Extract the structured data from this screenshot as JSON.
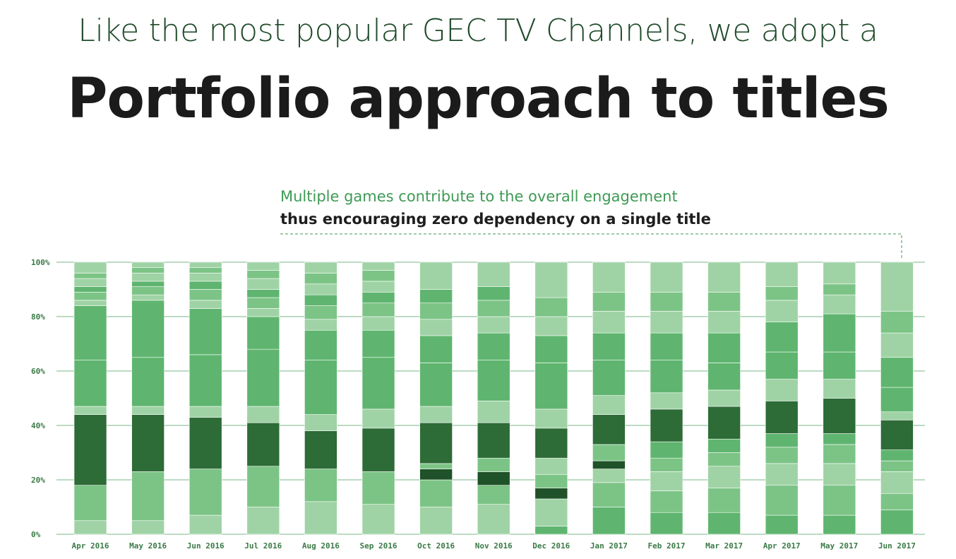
{
  "header": {
    "subtitle": "Like the most popular GEC TV Channels, we adopt a",
    "title": "Portfolio approach to titles"
  },
  "annotation": {
    "line1": "Multiple games contribute to the overall engagement",
    "line2": "thus encouraging zero dependency on a single title"
  },
  "colors": {
    "light": "#9fd3a5",
    "mid": "#5fb56f",
    "midlight": "#7cc486",
    "dark": "#2d6b37",
    "darker": "#1f5228",
    "grid": "#3f9a55"
  },
  "chart_data": {
    "type": "bar",
    "stacked": true,
    "normalized": true,
    "ylim": [
      0,
      100
    ],
    "yticks": [
      "0%",
      "20%",
      "40%",
      "60%",
      "80%",
      "100%"
    ],
    "categories": [
      "Apr 2016",
      "May 2016",
      "Jun 2016",
      "Jul 2016",
      "Aug 2016",
      "Sep 2016",
      "Oct 2016",
      "Nov 2016",
      "Dec 2016",
      "Jan 2017",
      "Feb 2017",
      "Mar 2017",
      "Apr 2017",
      "May 2017",
      "Jun 2017"
    ],
    "grid": true,
    "segments": [
      [
        {
          "v": 5,
          "c": "light"
        },
        {
          "v": 13,
          "c": "midlight"
        },
        {
          "v": 26,
          "c": "dark"
        },
        {
          "v": 3,
          "c": "light"
        },
        {
          "v": 17,
          "c": "mid"
        },
        {
          "v": 20,
          "c": "mid"
        },
        {
          "v": 2,
          "c": "light"
        },
        {
          "v": 3,
          "c": "midlight"
        },
        {
          "v": 2,
          "c": "mid"
        },
        {
          "v": 3,
          "c": "light"
        },
        {
          "v": 2,
          "c": "midlight"
        },
        {
          "v": 4,
          "c": "light"
        }
      ],
      [
        {
          "v": 5,
          "c": "light"
        },
        {
          "v": 18,
          "c": "midlight"
        },
        {
          "v": 21,
          "c": "dark"
        },
        {
          "v": 3,
          "c": "light"
        },
        {
          "v": 18,
          "c": "mid"
        },
        {
          "v": 21,
          "c": "mid"
        },
        {
          "v": 2,
          "c": "light"
        },
        {
          "v": 3,
          "c": "midlight"
        },
        {
          "v": 2,
          "c": "mid"
        },
        {
          "v": 3,
          "c": "light"
        },
        {
          "v": 2,
          "c": "midlight"
        },
        {
          "v": 2,
          "c": "light"
        }
      ],
      [
        {
          "v": 7,
          "c": "light"
        },
        {
          "v": 17,
          "c": "midlight"
        },
        {
          "v": 19,
          "c": "dark"
        },
        {
          "v": 4,
          "c": "light"
        },
        {
          "v": 19,
          "c": "mid"
        },
        {
          "v": 17,
          "c": "mid"
        },
        {
          "v": 3,
          "c": "light"
        },
        {
          "v": 4,
          "c": "midlight"
        },
        {
          "v": 3,
          "c": "mid"
        },
        {
          "v": 3,
          "c": "light"
        },
        {
          "v": 2,
          "c": "midlight"
        },
        {
          "v": 2,
          "c": "light"
        }
      ],
      [
        {
          "v": 10,
          "c": "light"
        },
        {
          "v": 15,
          "c": "midlight"
        },
        {
          "v": 16,
          "c": "dark"
        },
        {
          "v": 6,
          "c": "light"
        },
        {
          "v": 21,
          "c": "mid"
        },
        {
          "v": 12,
          "c": "mid"
        },
        {
          "v": 3,
          "c": "light"
        },
        {
          "v": 4,
          "c": "midlight"
        },
        {
          "v": 3,
          "c": "mid"
        },
        {
          "v": 4,
          "c": "light"
        },
        {
          "v": 3,
          "c": "midlight"
        },
        {
          "v": 3,
          "c": "light"
        }
      ],
      [
        {
          "v": 12,
          "c": "light"
        },
        {
          "v": 12,
          "c": "midlight"
        },
        {
          "v": 14,
          "c": "dark"
        },
        {
          "v": 6,
          "c": "light"
        },
        {
          "v": 20,
          "c": "mid"
        },
        {
          "v": 11,
          "c": "mid"
        },
        {
          "v": 4,
          "c": "light"
        },
        {
          "v": 5,
          "c": "midlight"
        },
        {
          "v": 4,
          "c": "mid"
        },
        {
          "v": 4,
          "c": "light"
        },
        {
          "v": 4,
          "c": "midlight"
        },
        {
          "v": 4,
          "c": "light"
        }
      ],
      [
        {
          "v": 11,
          "c": "light"
        },
        {
          "v": 12,
          "c": "midlight"
        },
        {
          "v": 16,
          "c": "dark"
        },
        {
          "v": 7,
          "c": "light"
        },
        {
          "v": 19,
          "c": "mid"
        },
        {
          "v": 10,
          "c": "mid"
        },
        {
          "v": 5,
          "c": "light"
        },
        {
          "v": 5,
          "c": "midlight"
        },
        {
          "v": 4,
          "c": "mid"
        },
        {
          "v": 4,
          "c": "light"
        },
        {
          "v": 4,
          "c": "midlight"
        },
        {
          "v": 3,
          "c": "light"
        }
      ],
      [
        {
          "v": 10,
          "c": "light"
        },
        {
          "v": 10,
          "c": "midlight"
        },
        {
          "v": 4,
          "c": "darker"
        },
        {
          "v": 2,
          "c": "midlight"
        },
        {
          "v": 15,
          "c": "dark"
        },
        {
          "v": 6,
          "c": "light"
        },
        {
          "v": 16,
          "c": "mid"
        },
        {
          "v": 10,
          "c": "mid"
        },
        {
          "v": 6,
          "c": "light"
        },
        {
          "v": 6,
          "c": "midlight"
        },
        {
          "v": 5,
          "c": "mid"
        },
        {
          "v": 10,
          "c": "light"
        }
      ],
      [
        {
          "v": 11,
          "c": "light"
        },
        {
          "v": 7,
          "c": "midlight"
        },
        {
          "v": 5,
          "c": "darker"
        },
        {
          "v": 5,
          "c": "midlight"
        },
        {
          "v": 13,
          "c": "dark"
        },
        {
          "v": 8,
          "c": "light"
        },
        {
          "v": 15,
          "c": "mid"
        },
        {
          "v": 10,
          "c": "mid"
        },
        {
          "v": 6,
          "c": "light"
        },
        {
          "v": 6,
          "c": "midlight"
        },
        {
          "v": 5,
          "c": "mid"
        },
        {
          "v": 9,
          "c": "light"
        }
      ],
      [
        {
          "v": 3,
          "c": "mid"
        },
        {
          "v": 10,
          "c": "light"
        },
        {
          "v": 4,
          "c": "darker"
        },
        {
          "v": 5,
          "c": "midlight"
        },
        {
          "v": 6,
          "c": "light"
        },
        {
          "v": 11,
          "c": "dark"
        },
        {
          "v": 7,
          "c": "light"
        },
        {
          "v": 17,
          "c": "mid"
        },
        {
          "v": 10,
          "c": "mid"
        },
        {
          "v": 7,
          "c": "light"
        },
        {
          "v": 7,
          "c": "midlight"
        },
        {
          "v": 13,
          "c": "light"
        }
      ],
      [
        {
          "v": 10,
          "c": "mid"
        },
        {
          "v": 9,
          "c": "midlight"
        },
        {
          "v": 5,
          "c": "light"
        },
        {
          "v": 3,
          "c": "darker"
        },
        {
          "v": 6,
          "c": "midlight"
        },
        {
          "v": 11,
          "c": "dark"
        },
        {
          "v": 7,
          "c": "light"
        },
        {
          "v": 13,
          "c": "mid"
        },
        {
          "v": 10,
          "c": "mid"
        },
        {
          "v": 8,
          "c": "light"
        },
        {
          "v": 7,
          "c": "midlight"
        },
        {
          "v": 11,
          "c": "light"
        }
      ],
      [
        {
          "v": 8,
          "c": "mid"
        },
        {
          "v": 8,
          "c": "midlight"
        },
        {
          "v": 7,
          "c": "light"
        },
        {
          "v": 5,
          "c": "midlight"
        },
        {
          "v": 6,
          "c": "mid"
        },
        {
          "v": 12,
          "c": "dark"
        },
        {
          "v": 6,
          "c": "light"
        },
        {
          "v": 12,
          "c": "mid"
        },
        {
          "v": 10,
          "c": "mid"
        },
        {
          "v": 8,
          "c": "light"
        },
        {
          "v": 7,
          "c": "midlight"
        },
        {
          "v": 11,
          "c": "light"
        }
      ],
      [
        {
          "v": 8,
          "c": "mid"
        },
        {
          "v": 9,
          "c": "midlight"
        },
        {
          "v": 8,
          "c": "light"
        },
        {
          "v": 5,
          "c": "midlight"
        },
        {
          "v": 5,
          "c": "mid"
        },
        {
          "v": 12,
          "c": "dark"
        },
        {
          "v": 6,
          "c": "light"
        },
        {
          "v": 10,
          "c": "mid"
        },
        {
          "v": 11,
          "c": "mid"
        },
        {
          "v": 8,
          "c": "light"
        },
        {
          "v": 7,
          "c": "midlight"
        },
        {
          "v": 11,
          "c": "light"
        }
      ],
      [
        {
          "v": 7,
          "c": "mid"
        },
        {
          "v": 11,
          "c": "midlight"
        },
        {
          "v": 8,
          "c": "light"
        },
        {
          "v": 6,
          "c": "midlight"
        },
        {
          "v": 5,
          "c": "mid"
        },
        {
          "v": 12,
          "c": "dark"
        },
        {
          "v": 8,
          "c": "light"
        },
        {
          "v": 10,
          "c": "mid"
        },
        {
          "v": 11,
          "c": "mid"
        },
        {
          "v": 8,
          "c": "light"
        },
        {
          "v": 5,
          "c": "midlight"
        },
        {
          "v": 9,
          "c": "light"
        }
      ],
      [
        {
          "v": 7,
          "c": "mid"
        },
        {
          "v": 11,
          "c": "midlight"
        },
        {
          "v": 8,
          "c": "light"
        },
        {
          "v": 7,
          "c": "midlight"
        },
        {
          "v": 4,
          "c": "mid"
        },
        {
          "v": 13,
          "c": "dark"
        },
        {
          "v": 7,
          "c": "light"
        },
        {
          "v": 10,
          "c": "mid"
        },
        {
          "v": 14,
          "c": "mid"
        },
        {
          "v": 7,
          "c": "light"
        },
        {
          "v": 4,
          "c": "midlight"
        },
        {
          "v": 8,
          "c": "light"
        }
      ],
      [
        {
          "v": 9,
          "c": "mid"
        },
        {
          "v": 6,
          "c": "midlight"
        },
        {
          "v": 8,
          "c": "light"
        },
        {
          "v": 4,
          "c": "midlight"
        },
        {
          "v": 4,
          "c": "mid"
        },
        {
          "v": 11,
          "c": "dark"
        },
        {
          "v": 3,
          "c": "light"
        },
        {
          "v": 9,
          "c": "mid"
        },
        {
          "v": 11,
          "c": "mid"
        },
        {
          "v": 9,
          "c": "light"
        },
        {
          "v": 8,
          "c": "midlight"
        },
        {
          "v": 18,
          "c": "light"
        }
      ]
    ]
  }
}
